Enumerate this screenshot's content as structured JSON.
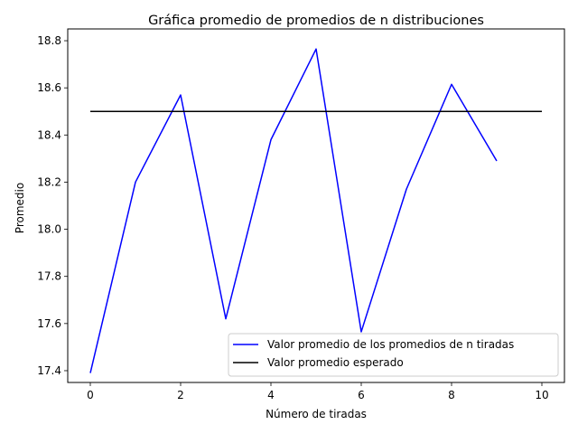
{
  "chart_data": {
    "type": "line",
    "title": "Gráfica promedio de promedios de n distribuciones",
    "xlabel": "Número de tiradas",
    "ylabel": "Promedio",
    "xlim": [
      -0.5,
      10.5
    ],
    "ylim": [
      17.35,
      18.85
    ],
    "xticks": [
      0,
      2,
      4,
      6,
      8,
      10
    ],
    "xtick_labels": [
      "0",
      "2",
      "4",
      "6",
      "8",
      "10"
    ],
    "yticks": [
      17.4,
      17.6,
      17.8,
      18.0,
      18.2,
      18.4,
      18.6,
      18.8
    ],
    "ytick_labels": [
      "17.4",
      "17.6",
      "17.8",
      "18.0",
      "18.2",
      "18.4",
      "18.6",
      "18.8"
    ],
    "grid": false,
    "legend_position": "bottom-right",
    "series": [
      {
        "name": "Valor promedio de los promedios de n tiradas",
        "color": "#0000ff",
        "x": [
          0,
          1,
          2,
          3,
          4,
          5,
          6,
          7,
          8,
          9
        ],
        "values": [
          17.39,
          18.2,
          18.57,
          17.62,
          18.38,
          18.765,
          17.565,
          18.17,
          18.615,
          18.29
        ]
      },
      {
        "name": "Valor promedio esperado",
        "color": "#000000",
        "x": [
          0,
          10
        ],
        "values": [
          18.5,
          18.5
        ]
      }
    ]
  }
}
